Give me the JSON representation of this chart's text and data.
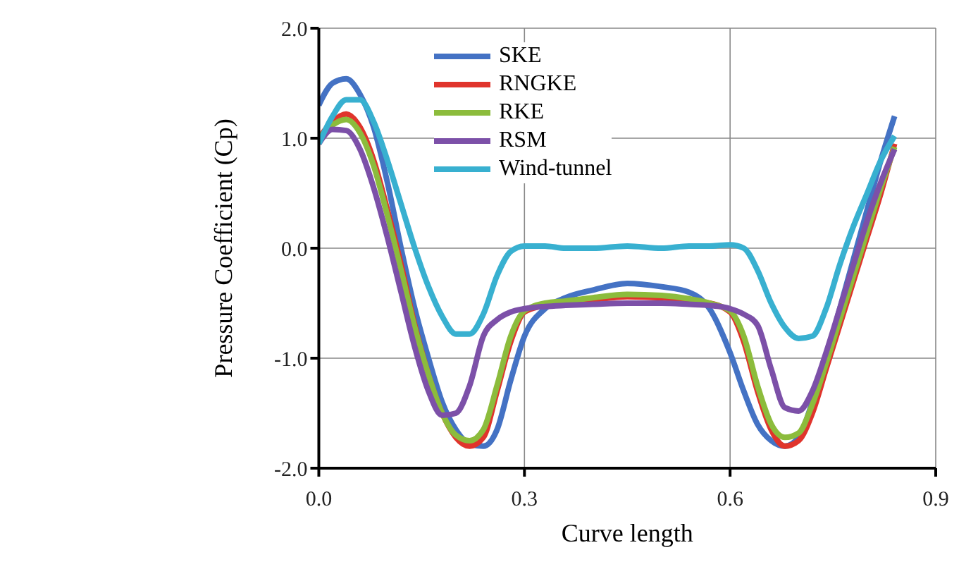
{
  "chart_data": {
    "type": "line",
    "xlabel": "Curve length",
    "ylabel": "Pressure Coefficient (Cp)",
    "x": [
      0,
      0.02,
      0.04,
      0.06,
      0.08,
      0.1,
      0.12,
      0.14,
      0.16,
      0.18,
      0.2,
      0.22,
      0.24,
      0.26,
      0.28,
      0.3,
      0.33,
      0.36,
      0.4,
      0.45,
      0.5,
      0.54,
      0.57,
      0.6,
      0.62,
      0.64,
      0.66,
      0.68,
      0.7,
      0.72,
      0.74,
      0.76,
      0.78,
      0.8,
      0.82,
      0.84
    ],
    "series": [
      {
        "name": "SKE",
        "color": "#4472c4",
        "values": [
          1.3,
          1.5,
          1.54,
          1.4,
          1.1,
          0.6,
          0.0,
          -0.55,
          -1.0,
          -1.4,
          -1.65,
          -1.78,
          -1.8,
          -1.65,
          -1.2,
          -0.8,
          -0.55,
          -0.45,
          -0.38,
          -0.32,
          -0.35,
          -0.4,
          -0.55,
          -0.95,
          -1.3,
          -1.6,
          -1.75,
          -1.8,
          -1.72,
          -1.4,
          -1.0,
          -0.55,
          -0.1,
          0.35,
          0.8,
          1.2
        ]
      },
      {
        "name": "RNGKE",
        "color": "#e0342c",
        "values": [
          1.0,
          1.15,
          1.22,
          1.1,
          0.8,
          0.35,
          -0.15,
          -0.7,
          -1.15,
          -1.5,
          -1.72,
          -1.8,
          -1.72,
          -1.3,
          -0.85,
          -0.58,
          -0.52,
          -0.5,
          -0.47,
          -0.44,
          -0.45,
          -0.48,
          -0.5,
          -0.58,
          -0.85,
          -1.3,
          -1.65,
          -1.8,
          -1.75,
          -1.5,
          -1.1,
          -0.7,
          -0.3,
          0.1,
          0.5,
          0.95
        ]
      },
      {
        "name": "RKE",
        "color": "#8cbc3c",
        "values": [
          1.0,
          1.12,
          1.17,
          1.05,
          0.75,
          0.3,
          -0.2,
          -0.72,
          -1.15,
          -1.5,
          -1.7,
          -1.75,
          -1.65,
          -1.25,
          -0.8,
          -0.57,
          -0.5,
          -0.48,
          -0.45,
          -0.42,
          -0.43,
          -0.46,
          -0.5,
          -0.57,
          -0.8,
          -1.25,
          -1.6,
          -1.72,
          -1.68,
          -1.42,
          -1.05,
          -0.65,
          -0.25,
          0.15,
          0.55,
          0.92
        ]
      },
      {
        "name": "RSM",
        "color": "#7c50a8",
        "values": [
          0.95,
          1.08,
          1.07,
          0.9,
          0.55,
          0.1,
          -0.4,
          -0.9,
          -1.3,
          -1.52,
          -1.5,
          -1.25,
          -0.8,
          -0.65,
          -0.58,
          -0.55,
          -0.53,
          -0.52,
          -0.51,
          -0.5,
          -0.5,
          -0.51,
          -0.52,
          -0.55,
          -0.6,
          -0.7,
          -1.1,
          -1.45,
          -1.48,
          -1.3,
          -0.95,
          -0.55,
          -0.15,
          0.25,
          0.6,
          0.9
        ]
      },
      {
        "name": "Wind-tunnel",
        "color": "#38b0d0",
        "values": [
          0.95,
          1.2,
          1.35,
          1.35,
          1.15,
          0.8,
          0.4,
          0.0,
          -0.35,
          -0.62,
          -0.78,
          -0.78,
          -0.6,
          -0.25,
          -0.03,
          0.02,
          0.02,
          0.0,
          0.0,
          0.02,
          0.0,
          0.02,
          0.02,
          0.03,
          0.0,
          -0.2,
          -0.5,
          -0.72,
          -0.82,
          -0.8,
          -0.55,
          -0.15,
          0.2,
          0.5,
          0.8,
          1.02
        ]
      }
    ],
    "xlim": [
      0,
      0.9
    ],
    "xticks": [
      {
        "value": 0,
        "label": "0.0"
      },
      {
        "value": 0.3,
        "label": "0.3"
      },
      {
        "value": 0.6,
        "label": "0.6"
      },
      {
        "value": 0.9,
        "label": "0.9"
      }
    ],
    "ylim": [
      -2,
      2
    ],
    "yticks": [
      {
        "value": -2,
        "label": "-2.0"
      },
      {
        "value": -1,
        "label": "-1.0"
      },
      {
        "value": 0,
        "label": "0.0"
      },
      {
        "value": 1,
        "label": "1.0"
      },
      {
        "value": 2,
        "label": "2.0"
      }
    ],
    "grid": true,
    "legend": "top",
    "marker": "none",
    "line_style": "solid"
  }
}
